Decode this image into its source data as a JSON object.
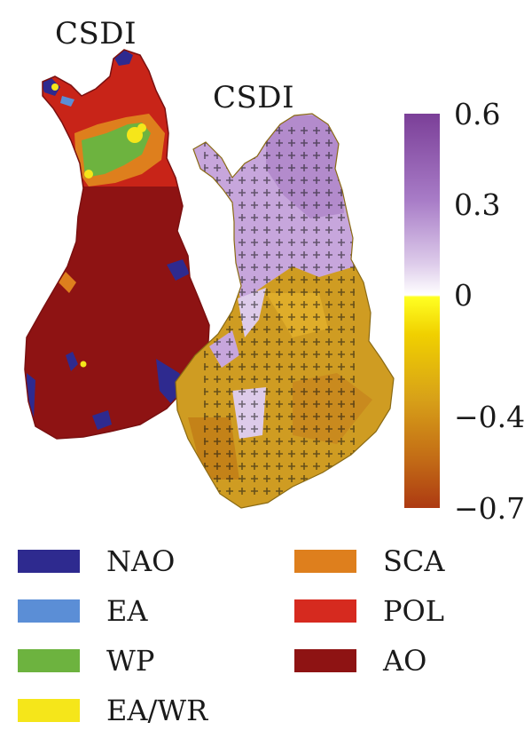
{
  "maps": [
    {
      "title": "CSDI"
    },
    {
      "title": "CSDI"
    }
  ],
  "colorbar": {
    "ticks": [
      {
        "value": 0.6,
        "label": "0.6"
      },
      {
        "value": 0.3,
        "label": "0.3"
      },
      {
        "value": 0,
        "label": "0"
      },
      {
        "value": -0.4,
        "label": "−0.4"
      },
      {
        "value": -0.7,
        "label": "−0.7"
      }
    ],
    "colors": [
      "#7b3f98",
      "#ffffff",
      "#ffff22",
      "#ad3a12"
    ]
  },
  "legend": [
    {
      "label": "NAO",
      "color": "#2e2a8f"
    },
    {
      "label": "EA",
      "color": "#5b8ed6"
    },
    {
      "label": "WP",
      "color": "#6db33f"
    },
    {
      "label": "EA/WR",
      "color": "#f5e61a"
    },
    {
      "label": "SCA",
      "color": "#de7f1d"
    },
    {
      "label": "POL",
      "color": "#d62a1f"
    },
    {
      "label": "AO",
      "color": "#8e1313"
    }
  ]
}
